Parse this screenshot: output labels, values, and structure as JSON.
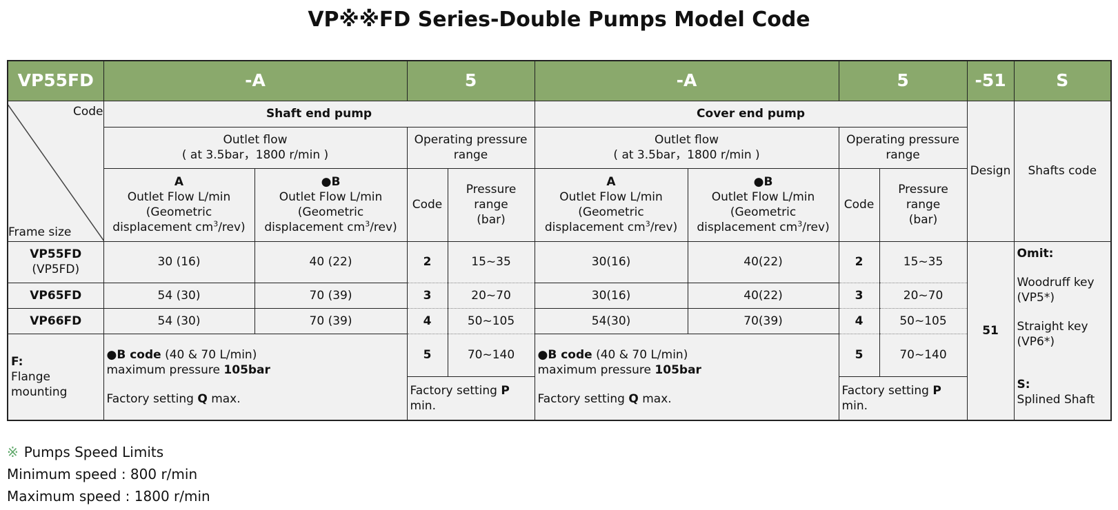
{
  "title": "VP※※FD Series-Double Pumps Model Code",
  "table": {
    "model_code": [
      "VP55FD",
      "-A",
      "5",
      "-A",
      "5",
      "-51",
      "S"
    ],
    "corner": {
      "code": "Code",
      "frame_size": "Frame size"
    },
    "sections": [
      {
        "title": "Shaft end pump",
        "outlet_flow": "Outlet flow",
        "outlet_condition": "( at 3.5bar，1800 r/min )",
        "pressure_title": "Operating pressure range",
        "flow_columns": [
          {
            "name": "A",
            "unit": "Outlet Flow L/min",
            "geometric": "(Geometric",
            "displacement": "displacement cm",
            "exponent": "3",
            "rev": "/rev)"
          },
          {
            "name": "●B",
            "unit": "Outlet Flow L/min",
            "geometric": "(Geometric",
            "displacement": "displacement cm",
            "exponent": "3",
            "rev": "/rev)"
          }
        ],
        "code_title": "Code",
        "pressure_range": [
          "Pressure",
          "range",
          "(bar)"
        ],
        "rows": [
          {
            "a": "30 (16)",
            "b": "40 (22)",
            "code": "2",
            "pressure": "15~35"
          },
          {
            "a": "54 (30)",
            "b": "70 (39)",
            "code": "3",
            "pressure": "20~70"
          },
          {
            "a": "54 (30)",
            "b": "70 (39)",
            "code": "4",
            "pressure": "50~105"
          }
        ],
        "extra_code": "5",
        "extra_pressure": "70~140",
        "note": {
          "b_code": "●B code",
          "b_flow": " (40 & 70 L/min)",
          "max_pressure": "maximum pressure ",
          "max_value": "105bar",
          "factory": "Factory setting ",
          "factory_key": "Q",
          "factory_end": " max."
        },
        "pressure_note": {
          "factory": "Factory setting ",
          "key": "P",
          "end": " min."
        }
      },
      {
        "title": "Cover end pump",
        "outlet_flow": "Outlet flow",
        "outlet_condition": "( at 3.5bar，1800 r/min )",
        "pressure_title": "Operating pressure range",
        "flow_columns": [
          {
            "name": "A",
            "unit": "Outlet Flow L/min",
            "geometric": "(Geometric",
            "displacement": "displacement cm",
            "exponent": "3",
            "rev": "/rev)"
          },
          {
            "name": "●B",
            "unit": "Outlet Flow L/min",
            "geometric": "(Geometric",
            "displacement": "displacement cm",
            "exponent": "3",
            "rev": "/rev)"
          }
        ],
        "code_title": "Code",
        "pressure_range": [
          "Pressure",
          "range",
          "(bar)"
        ],
        "rows": [
          {
            "a": "30(16)",
            "b": "40(22)",
            "code": "2",
            "pressure": "15~35"
          },
          {
            "a": "30(16)",
            "b": "40(22)",
            "code": "3",
            "pressure": "20~70"
          },
          {
            "a": "54(30)",
            "b": "70(39)",
            "code": "4",
            "pressure": "50~105"
          }
        ],
        "extra_code": "5",
        "extra_pressure": "70~140",
        "note": {
          "b_code": "●B code",
          "b_flow": " (40 & 70 L/min)",
          "max_pressure": "maximum pressure ",
          "max_value": "105bar",
          "factory": "Factory setting ",
          "factory_key": "Q",
          "factory_end": " max."
        },
        "pressure_note": {
          "factory": "Factory setting ",
          "key": "P",
          "end": " min."
        }
      }
    ],
    "frame_sizes": [
      {
        "name": "VP55FD",
        "note": "(VP5FD)"
      },
      {
        "name": "VP65FD"
      },
      {
        "name": "VP66FD"
      }
    ],
    "flange": {
      "code": "F:",
      "text": "Flange mounting"
    },
    "design": {
      "title": "Design",
      "value": "51"
    },
    "shafts": {
      "title": "Shafts code",
      "omit": "Omit:",
      "woodruff": "Woodruff key",
      "woodruff_note": "(VP5*)",
      "straight": "Straight key",
      "straight_note": "(VP6*)",
      "s": "S:",
      "splined": "Splined Shaft"
    }
  },
  "footer": {
    "mark": "※",
    "title": "Pumps Speed Limits",
    "lines": [
      "Minimum speed : 800 r/min",
      "Maximum speed : 1800 r/min"
    ]
  }
}
